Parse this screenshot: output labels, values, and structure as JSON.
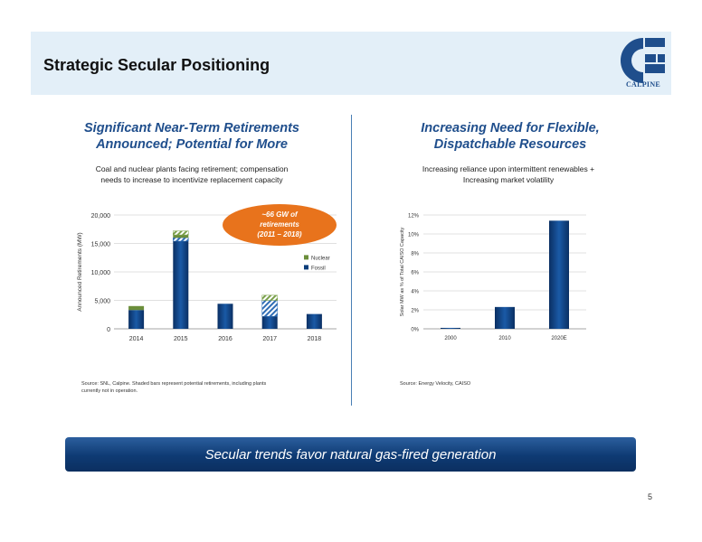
{
  "header": {
    "title": "Strategic Secular Positioning",
    "logo_text": "CALPINE",
    "logo_icon": "calpine-c-logo"
  },
  "left": {
    "title_line1": "Significant Near-Term Retirements",
    "title_line2": "Announced; Potential for More",
    "subtitle_line1": "Coal and nuclear plants facing retirement; compensation",
    "subtitle_line2": "needs to increase to incentivize replacement capacity",
    "callout_line1": "~66 GW of",
    "callout_line2": "retirements",
    "callout_line3": "(2011 – 2018)",
    "source_line1": "Source:   SNL, Calpine.   Shaded bars represent potential retirements, including plants",
    "source_line2": "currently not in operation."
  },
  "right": {
    "title_line1": "Increasing Need for Flexible,",
    "title_line2": "Dispatchable Resources",
    "subtitle_line1": "Increasing reliance upon intermittent renewables +",
    "subtitle_line2": "Increasing market volatility",
    "source": "Source: Energy Velocity, CAISO"
  },
  "banner": {
    "text": "Secular trends favor natural gas-fired generation"
  },
  "page_number": "5",
  "colors": {
    "fossil": "#0b3d7a",
    "nuclear": "#6b8e3b",
    "header_band": "#e3eff8",
    "callout": "#e8731c"
  },
  "chart_data": [
    {
      "type": "bar",
      "stacked": true,
      "categories": [
        "2014",
        "2015",
        "2016",
        "2017",
        "2018"
      ],
      "ylabel": "Announced Retirements (MW)",
      "ylim": [
        0,
        20000
      ],
      "yticks": [
        "0",
        "5,000",
        "10,000",
        "15,000",
        "20,000"
      ],
      "legend_placement": "right",
      "series": [
        {
          "name": "Fossil",
          "values": [
            3300,
            16000,
            4400,
            5000,
            2600
          ],
          "shaded": [
            0,
            600,
            0,
            2800,
            0
          ]
        },
        {
          "name": "Nuclear",
          "values": [
            700,
            1200,
            0,
            800,
            0
          ],
          "shaded": [
            0,
            700,
            0,
            900,
            0
          ]
        }
      ]
    },
    {
      "type": "bar",
      "categories": [
        "2000",
        "2010",
        "2020E"
      ],
      "ylabel": "Solar MW as % of Total CAISO Capacity",
      "ylim": [
        0,
        12
      ],
      "yticks": [
        "0%",
        "2%",
        "4%",
        "6%",
        "8%",
        "10%",
        "12%"
      ],
      "series": [
        {
          "values": [
            0.1,
            2.3,
            11.4
          ]
        }
      ]
    }
  ]
}
